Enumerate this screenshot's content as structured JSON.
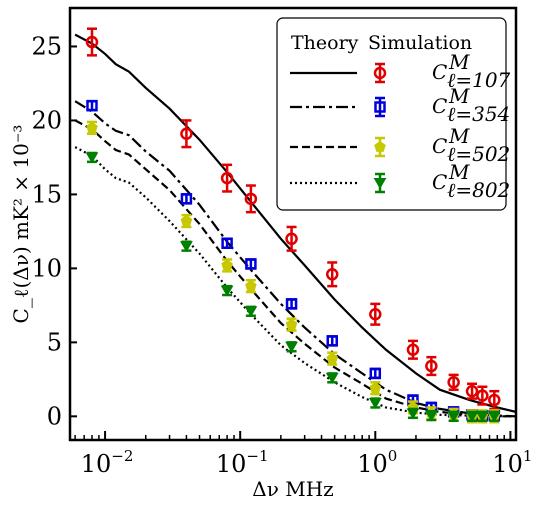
{
  "chart_data": {
    "type": "line",
    "xscale": "log",
    "xlabel": "Δν MHz",
    "ylabel": "C_ℓ(Δν) mK² × 10⁻³",
    "xlim": [
      0.0055,
      11
    ],
    "ylim": [
      -1.6,
      27.6
    ],
    "grid": false,
    "legend_placement": "top-right",
    "legend_headers": [
      "Theory",
      "Simulation"
    ],
    "y_ticks": [
      0,
      5,
      10,
      15,
      20,
      25
    ],
    "x_ticks": [
      0.01,
      0.1,
      1,
      10
    ],
    "x_tick_labels": [
      {
        "base": "10",
        "exp": "−2"
      },
      {
        "base": "10",
        "exp": "−1"
      },
      {
        "base": "10",
        "exp": "0"
      },
      {
        "base": "10",
        "exp": "1"
      }
    ],
    "theory": [
      {
        "name": "ℓ=107",
        "color": "#000000",
        "dash": "solid",
        "x": [
          0.006,
          0.008,
          0.01,
          0.012,
          0.015,
          0.02,
          0.03,
          0.05,
          0.08,
          0.12,
          0.2,
          0.3,
          0.5,
          0.8,
          1.2,
          2,
          3,
          5,
          8,
          11
        ],
        "y": [
          25.8,
          25.2,
          24.5,
          23.8,
          23.3,
          22.2,
          20.8,
          18.7,
          16.5,
          14.5,
          12.0,
          10.2,
          7.9,
          6.0,
          4.5,
          2.9,
          1.8,
          1.1,
          0.6,
          0.3
        ]
      },
      {
        "name": "ℓ=354",
        "color": "#000000",
        "dash": "dashdot",
        "x": [
          0.006,
          0.008,
          0.01,
          0.012,
          0.015,
          0.02,
          0.03,
          0.05,
          0.08,
          0.12,
          0.2,
          0.3,
          0.5,
          0.8,
          1.2,
          2,
          3,
          5,
          8,
          11
        ],
        "y": [
          21.3,
          20.6,
          19.8,
          19.3,
          19.0,
          17.9,
          16.6,
          14.3,
          11.8,
          9.9,
          7.6,
          6.0,
          4.2,
          2.9,
          1.8,
          0.9,
          0.5,
          0.2,
          0.05,
          0.0
        ]
      },
      {
        "name": "ℓ=502",
        "color": "#000000",
        "dash": "dashed",
        "x": [
          0.006,
          0.008,
          0.01,
          0.012,
          0.015,
          0.02,
          0.03,
          0.05,
          0.08,
          0.12,
          0.2,
          0.3,
          0.5,
          0.8,
          1.2,
          2,
          3,
          5,
          8,
          11
        ],
        "y": [
          20.0,
          19.4,
          18.6,
          18.0,
          17.7,
          16.7,
          15.3,
          13.0,
          10.5,
          8.6,
          6.3,
          4.9,
          3.3,
          2.2,
          1.2,
          0.6,
          0.3,
          0.1,
          0.0,
          0.0
        ]
      },
      {
        "name": "ℓ=802",
        "color": "#000000",
        "dash": "dotted",
        "x": [
          0.006,
          0.008,
          0.01,
          0.012,
          0.015,
          0.02,
          0.03,
          0.05,
          0.08,
          0.12,
          0.2,
          0.3,
          0.5,
          0.8,
          1.2,
          2,
          3,
          5,
          8,
          11
        ],
        "y": [
          18.2,
          17.6,
          16.7,
          16.1,
          15.8,
          14.8,
          13.2,
          11.0,
          8.7,
          6.9,
          4.8,
          3.6,
          2.3,
          1.3,
          0.6,
          0.25,
          0.1,
          0.05,
          0.0,
          0.0
        ]
      }
    ],
    "simulation": [
      {
        "name": "ℓ=107",
        "color": "#e00000",
        "marker": "circle",
        "x": [
          0.008,
          0.04,
          0.08,
          0.12,
          0.24,
          0.48,
          1.0,
          1.9,
          2.6,
          3.8,
          5.2,
          6.2,
          7.6
        ],
        "y": [
          25.3,
          19.1,
          16.1,
          14.7,
          12.0,
          9.6,
          6.9,
          4.5,
          3.4,
          2.3,
          1.7,
          1.4,
          1.1
        ],
        "err": [
          0.9,
          0.9,
          0.9,
          0.9,
          0.8,
          0.8,
          0.7,
          0.6,
          0.6,
          0.5,
          0.5,
          0.6,
          0.6
        ]
      },
      {
        "name": "ℓ=354",
        "color": "#0000dd",
        "marker": "square",
        "x": [
          0.008,
          0.04,
          0.08,
          0.12,
          0.24,
          0.48,
          1.0,
          1.9,
          2.6,
          3.8,
          5.2,
          6.2,
          7.6
        ],
        "y": [
          21.0,
          14.7,
          11.7,
          10.3,
          7.6,
          5.1,
          2.9,
          1.1,
          0.6,
          0.3,
          0.1,
          0.05,
          0.05
        ],
        "err": [
          0.3,
          0.3,
          0.3,
          0.3,
          0.3,
          0.3,
          0.3,
          0.3,
          0.3,
          0.3,
          0.3,
          0.3,
          0.3
        ]
      },
      {
        "name": "ℓ=502",
        "color": "#c8c800",
        "marker": "pentagon",
        "x": [
          0.008,
          0.04,
          0.08,
          0.12,
          0.24,
          0.48,
          1.0,
          1.9,
          2.6,
          3.8,
          5.2,
          6.2,
          7.6
        ],
        "y": [
          19.5,
          13.2,
          10.2,
          8.8,
          6.2,
          3.9,
          1.9,
          0.6,
          0.2,
          0.1,
          0.0,
          0.0,
          0.0
        ],
        "err": [
          0.4,
          0.4,
          0.4,
          0.4,
          0.4,
          0.4,
          0.4,
          0.4,
          0.4,
          0.4,
          0.4,
          0.4,
          0.4
        ]
      },
      {
        "name": "ℓ=802",
        "color": "#008000",
        "marker": "triangle-down",
        "x": [
          0.008,
          0.04,
          0.08,
          0.12,
          0.24,
          0.48,
          1.0,
          1.9,
          2.6,
          3.8,
          5.2,
          6.2,
          7.6
        ],
        "y": [
          17.5,
          11.5,
          8.5,
          7.1,
          4.7,
          2.6,
          0.9,
          0.2,
          0.05,
          0.0,
          0.0,
          0.0,
          0.0
        ],
        "err": [
          0.3,
          0.3,
          0.3,
          0.3,
          0.3,
          0.3,
          0.3,
          0.3,
          0.3,
          0.3,
          0.3,
          0.3,
          0.3
        ]
      }
    ],
    "legend_entries": [
      "ℓ=107",
      "ℓ=354",
      "ℓ=502",
      "ℓ=802"
    ]
  }
}
